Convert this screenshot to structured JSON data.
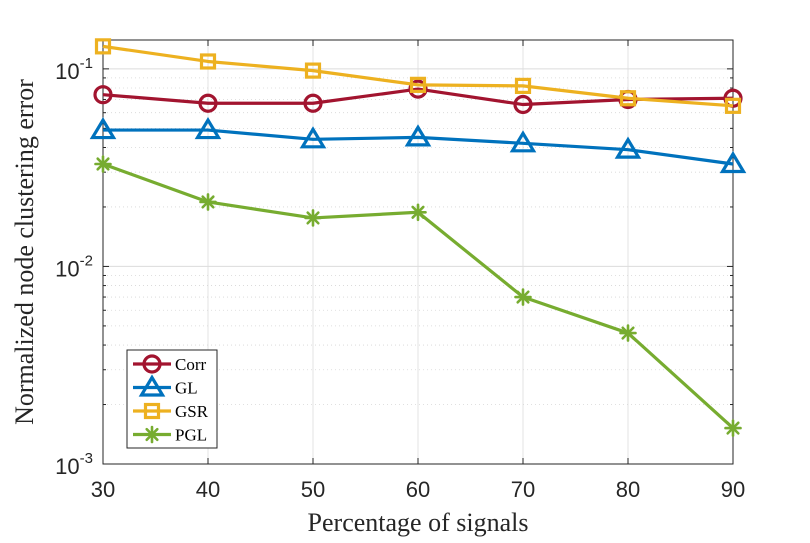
{
  "chart_data": {
    "type": "line",
    "title": "",
    "xlabel": "Percentage of signals",
    "ylabel": "Normalized node clustering error",
    "xscale": "linear",
    "yscale": "log",
    "xlim": [
      30,
      90
    ],
    "ylim": [
      0.001,
      0.14
    ],
    "x": [
      30,
      40,
      50,
      60,
      70,
      80,
      90
    ],
    "xticks": [
      "30",
      "40",
      "50",
      "60",
      "70",
      "80",
      "90"
    ],
    "yticks": [
      {
        "value": 0.001,
        "base": "10",
        "exp": "-3"
      },
      {
        "value": 0.01,
        "base": "10",
        "exp": "-2"
      },
      {
        "value": 0.1,
        "base": "10",
        "exp": "-1"
      }
    ],
    "grid": true,
    "legend_position": "bottom-left",
    "series": [
      {
        "name": "Corr",
        "marker": "circle",
        "color": "#A2142F",
        "values": [
          0.074,
          0.067,
          0.067,
          0.079,
          0.066,
          0.07,
          0.071
        ]
      },
      {
        "name": "GL",
        "marker": "triangle",
        "color": "#0072BD",
        "values": [
          0.049,
          0.049,
          0.044,
          0.045,
          0.042,
          0.039,
          0.033
        ]
      },
      {
        "name": "GSR",
        "marker": "square",
        "color": "#EDB120",
        "values": [
          0.13,
          0.109,
          0.098,
          0.083,
          0.082,
          0.071,
          0.065
        ]
      },
      {
        "name": "PGL",
        "marker": "asterisk",
        "color": "#77AC30",
        "values": [
          0.033,
          0.0212,
          0.0176,
          0.0188,
          0.007,
          0.0046,
          0.00152
        ]
      }
    ]
  }
}
